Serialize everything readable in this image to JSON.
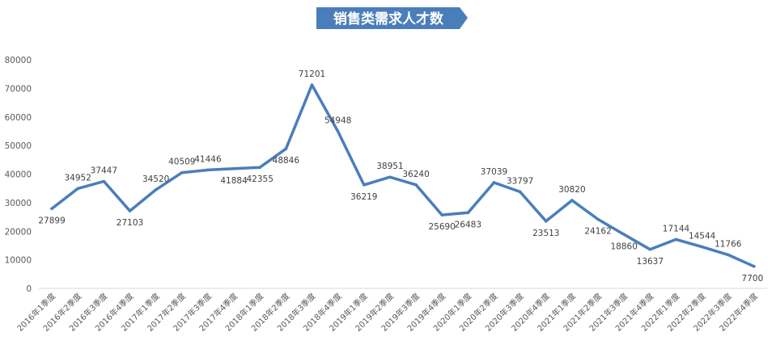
{
  "chart_data": {
    "type": "line",
    "title": "销售类需求人才数",
    "xlabel": "",
    "ylabel": "",
    "ylim": [
      0,
      80000
    ],
    "yticks": [
      0,
      10000,
      20000,
      30000,
      40000,
      50000,
      60000,
      70000,
      80000
    ],
    "grid": false,
    "legend": "none",
    "categories": [
      "2016年1季度",
      "2016年2季度",
      "2016年3季度",
      "2016年4季度",
      "2017年1季度",
      "2017年2季度",
      "2017年3季度",
      "2017年4季度",
      "2018年1季度",
      "2018年2季度",
      "2018年3季度",
      "2018年4季度",
      "2019年1季度",
      "2019年2季度",
      "2019年3季度",
      "2019年4季度",
      "2020年1季度",
      "2020年2季度",
      "2020年3季度",
      "2020年4季度",
      "2021年1季度",
      "2021年2季度",
      "2021年3季度",
      "2021年4季度",
      "2022年1季度",
      "2022年2季度",
      "2022年3季度",
      "2022年4季度"
    ],
    "series": [
      {
        "values": [
          27899,
          34952,
          37447,
          27103,
          34520,
          40509,
          41446,
          41884,
          42355,
          48846,
          71201,
          54948,
          36219,
          38951,
          36240,
          25690,
          26483,
          37039,
          33797,
          23513,
          30820,
          24162,
          18860,
          13637,
          17144,
          14544,
          11766,
          7700
        ],
        "color": "#4a7ebb"
      }
    ],
    "title_bg_color": "#4a7ebb",
    "axis_color": "#d9d9d9",
    "text_color": "#404040"
  }
}
